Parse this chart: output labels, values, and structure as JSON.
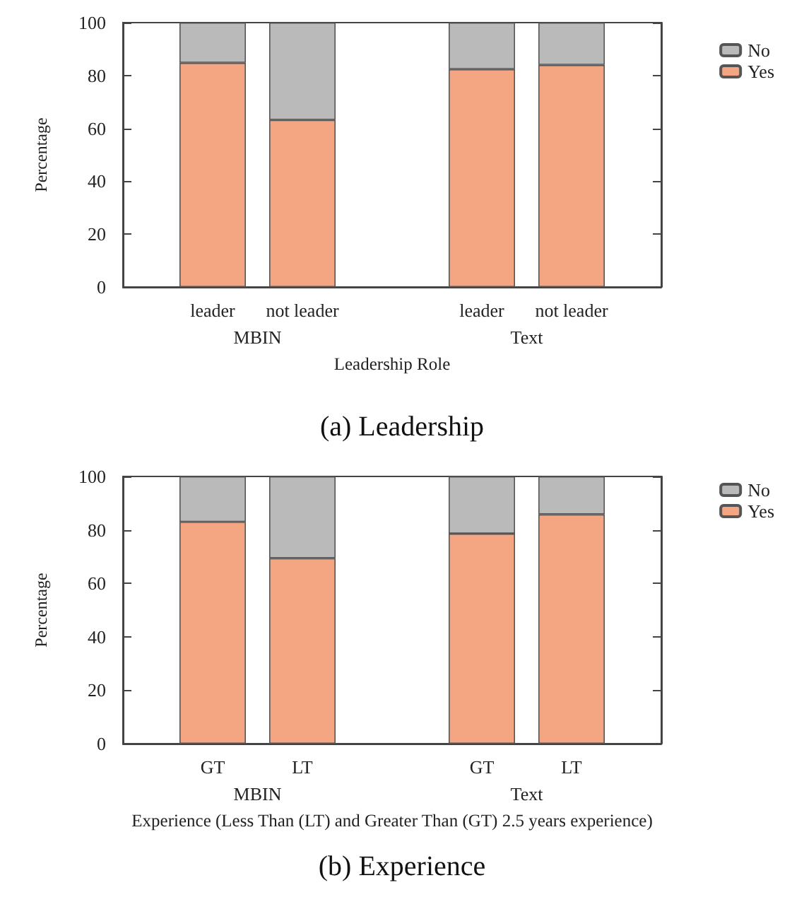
{
  "chart_data": [
    {
      "type": "bar",
      "title": "(a) Leadership",
      "xlabel": "Leadership Role",
      "ylabel": "Percentage",
      "categories": [
        null,
        "leader",
        "not leader",
        null,
        "leader",
        "not leader",
        null
      ],
      "stacked": true,
      "annotations": [
        "MBIN",
        "Text"
      ],
      "series": [
        {
          "name": "Yes",
          "color": "#f4a582",
          "values": [
            null,
            84.8,
            63.2,
            null,
            82.4,
            84.0,
            null
          ]
        },
        {
          "name": "No",
          "color": "#bababa",
          "values": [
            null,
            15.2,
            36.8,
            null,
            17.6,
            16.0,
            null
          ]
        }
      ],
      "ylim": [
        0,
        100
      ],
      "yticks": [
        0,
        20,
        40,
        60,
        80,
        100
      ],
      "grid": false,
      "legend": "top right"
    },
    {
      "type": "bar",
      "title": "(b) Experience",
      "xlabel": "Experience (Less Than (LT) and Greater Than (GT) 2.5 years experience)",
      "ylabel": "Percentage",
      "categories": [
        null,
        "GT",
        "LT",
        null,
        "GT",
        "LT",
        null
      ],
      "stacked": true,
      "annotations": [
        "MBIN",
        "Text"
      ],
      "series": [
        {
          "name": "Yes",
          "color": "#f4a582",
          "values": [
            null,
            83.0,
            69.4,
            null,
            78.6,
            85.8,
            null
          ]
        },
        {
          "name": "No",
          "color": "#bababa",
          "values": [
            null,
            17.0,
            30.6,
            null,
            21.4,
            14.2,
            null
          ]
        }
      ],
      "ylim": [
        0,
        100
      ],
      "yticks": [
        0,
        20,
        40,
        60,
        80,
        100
      ],
      "grid": false,
      "legend": "top right"
    }
  ]
}
